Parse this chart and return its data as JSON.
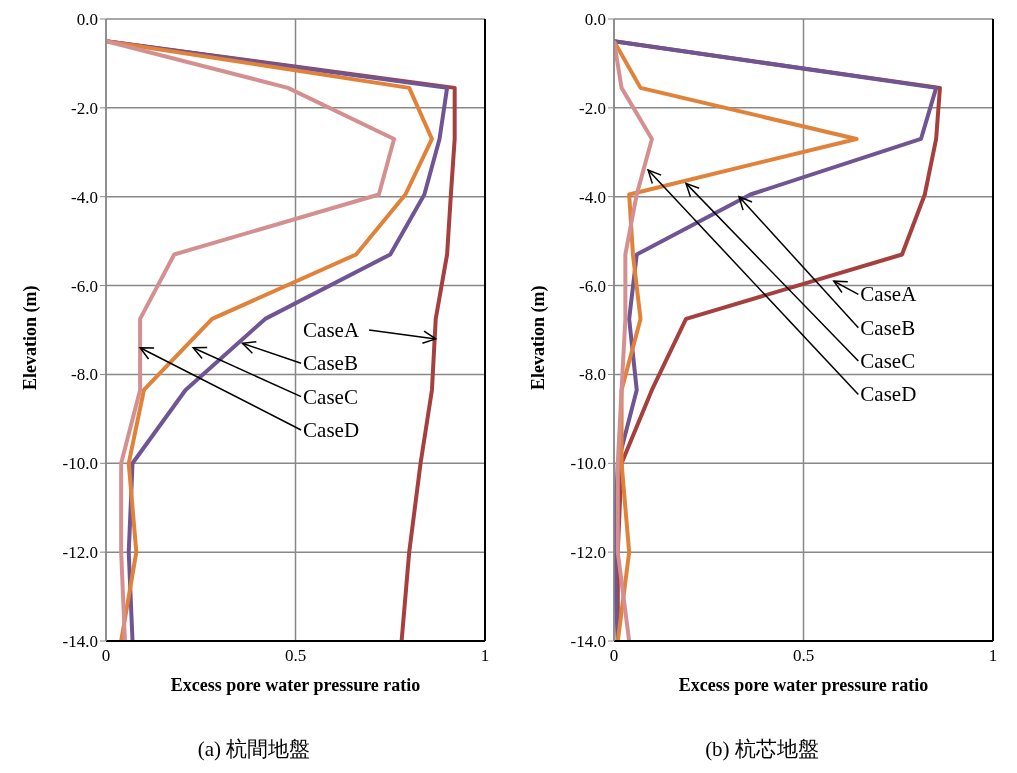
{
  "chart_data": [
    {
      "type": "line",
      "title": "(a) 杭間地盤",
      "xlabel": "Excess pore water pressure ratio",
      "ylabel": "Elevation (m)",
      "xlim": [
        0,
        1
      ],
      "xticks": [
        0,
        0.5,
        1
      ],
      "ylim": [
        -14,
        0
      ],
      "yticks": [
        {
          "value": 0,
          "label": "0.0"
        },
        {
          "value": -2,
          "label": "-2.0"
        },
        {
          "value": -4,
          "label": "-4.0"
        },
        {
          "value": -6,
          "label": "-6.0"
        },
        {
          "value": -8,
          "label": "-8.0"
        },
        {
          "value": -10,
          "label": "-10.0"
        },
        {
          "value": -12,
          "label": "-12.0"
        },
        {
          "value": -14,
          "label": "-14.0"
        }
      ],
      "grid": true,
      "marker": "none",
      "line_style": "solid",
      "series": [
        {
          "color": "#a5403f",
          "x": [
            0,
            0.92,
            0.92,
            0.91,
            0.9,
            0.87,
            0.86,
            0.83,
            0.8,
            0.78
          ],
          "values": [
            -0.5,
            -1.55,
            -2.7,
            -3.95,
            -5.3,
            -6.75,
            -8.35,
            -10,
            -12,
            -14
          ]
        },
        {
          "color": "#6f5592",
          "x": [
            0,
            0.9,
            0.88,
            0.84,
            0.75,
            0.42,
            0.21,
            0.07,
            0.06,
            0.07
          ],
          "values": [
            -0.5,
            -1.55,
            -2.7,
            -3.95,
            -5.3,
            -6.75,
            -8.35,
            -10,
            -12,
            -14
          ]
        },
        {
          "color": "#e0823a",
          "x": [
            0,
            0.8,
            0.86,
            0.79,
            0.66,
            0.28,
            0.1,
            0.06,
            0.08,
            0.04
          ],
          "values": [
            -0.5,
            -1.55,
            -2.7,
            -3.95,
            -5.3,
            -6.75,
            -8.35,
            -10,
            -12,
            -14
          ]
        },
        {
          "color": "#d49090",
          "x": [
            0,
            0.48,
            0.76,
            0.72,
            0.18,
            0.09,
            0.09,
            0.04,
            0.04,
            0.05
          ],
          "values": [
            -0.5,
            -1.55,
            -2.7,
            -3.95,
            -5.3,
            -6.75,
            -8.35,
            -10,
            -12,
            -14
          ]
        }
      ],
      "annotations": [
        {
          "text": "CaseA",
          "x": 0.87,
          "y": -7.2
        },
        {
          "text": "CaseB",
          "x": 0.36,
          "y": -7.3
        },
        {
          "text": "CaseC",
          "x": 0.23,
          "y": -7.4
        },
        {
          "text": "CaseD",
          "x": 0.09,
          "y": -7.4
        }
      ]
    },
    {
      "type": "line",
      "title": "(b) 杭芯地盤",
      "xlabel": "Excess pore water pressure ratio",
      "ylabel": "Elevation (m)",
      "xlim": [
        0,
        1
      ],
      "xticks": [
        0,
        0.5,
        1
      ],
      "ylim": [
        -14,
        0
      ],
      "yticks": [
        {
          "value": 0,
          "label": "0.0"
        },
        {
          "value": -2,
          "label": "-2.0"
        },
        {
          "value": -4,
          "label": "-4.0"
        },
        {
          "value": -6,
          "label": "-6.0"
        },
        {
          "value": -8,
          "label": "-8.0"
        },
        {
          "value": -10,
          "label": "-10.0"
        },
        {
          "value": -12,
          "label": "-12.0"
        },
        {
          "value": -14,
          "label": "-14.0"
        }
      ],
      "grid": true,
      "marker": "none",
      "line_style": "solid",
      "series": [
        {
          "color": "#a5403f",
          "x": [
            0,
            0.86,
            0.85,
            0.82,
            0.76,
            0.19,
            0.1,
            0.02,
            0.01,
            0.01
          ],
          "values": [
            -0.5,
            -1.55,
            -2.7,
            -3.95,
            -5.3,
            -6.75,
            -8.35,
            -10,
            -12,
            -14
          ]
        },
        {
          "color": "#6f5592",
          "x": [
            0,
            0.85,
            0.81,
            0.36,
            0.06,
            0.04,
            0.06,
            0.01,
            0.0,
            0.01
          ],
          "values": [
            -0.5,
            -1.55,
            -2.7,
            -3.95,
            -5.3,
            -6.75,
            -8.35,
            -10,
            -12,
            -14
          ]
        },
        {
          "color": "#e0823a",
          "x": [
            0,
            0.07,
            0.64,
            0.04,
            0.05,
            0.07,
            0.02,
            0.02,
            0.04,
            0.01
          ],
          "values": [
            -0.5,
            -1.55,
            -2.7,
            -3.95,
            -5.3,
            -6.75,
            -8.35,
            -10,
            -12,
            -14
          ]
        },
        {
          "color": "#d49090",
          "x": [
            0,
            0.02,
            0.1,
            0.06,
            0.03,
            0.03,
            0.02,
            0.01,
            0.01,
            0.04
          ],
          "values": [
            -0.5,
            -1.55,
            -2.7,
            -3.95,
            -5.3,
            -6.75,
            -8.35,
            -10,
            -12,
            -14
          ]
        }
      ],
      "annotations": [
        {
          "text": "CaseA",
          "x": 0.58,
          "y": -5.9
        },
        {
          "text": "CaseB",
          "x": 0.33,
          "y": -4.0
        },
        {
          "text": "CaseC",
          "x": 0.19,
          "y": -3.7
        },
        {
          "text": "CaseD",
          "x": 0.09,
          "y": -3.4
        }
      ]
    }
  ]
}
